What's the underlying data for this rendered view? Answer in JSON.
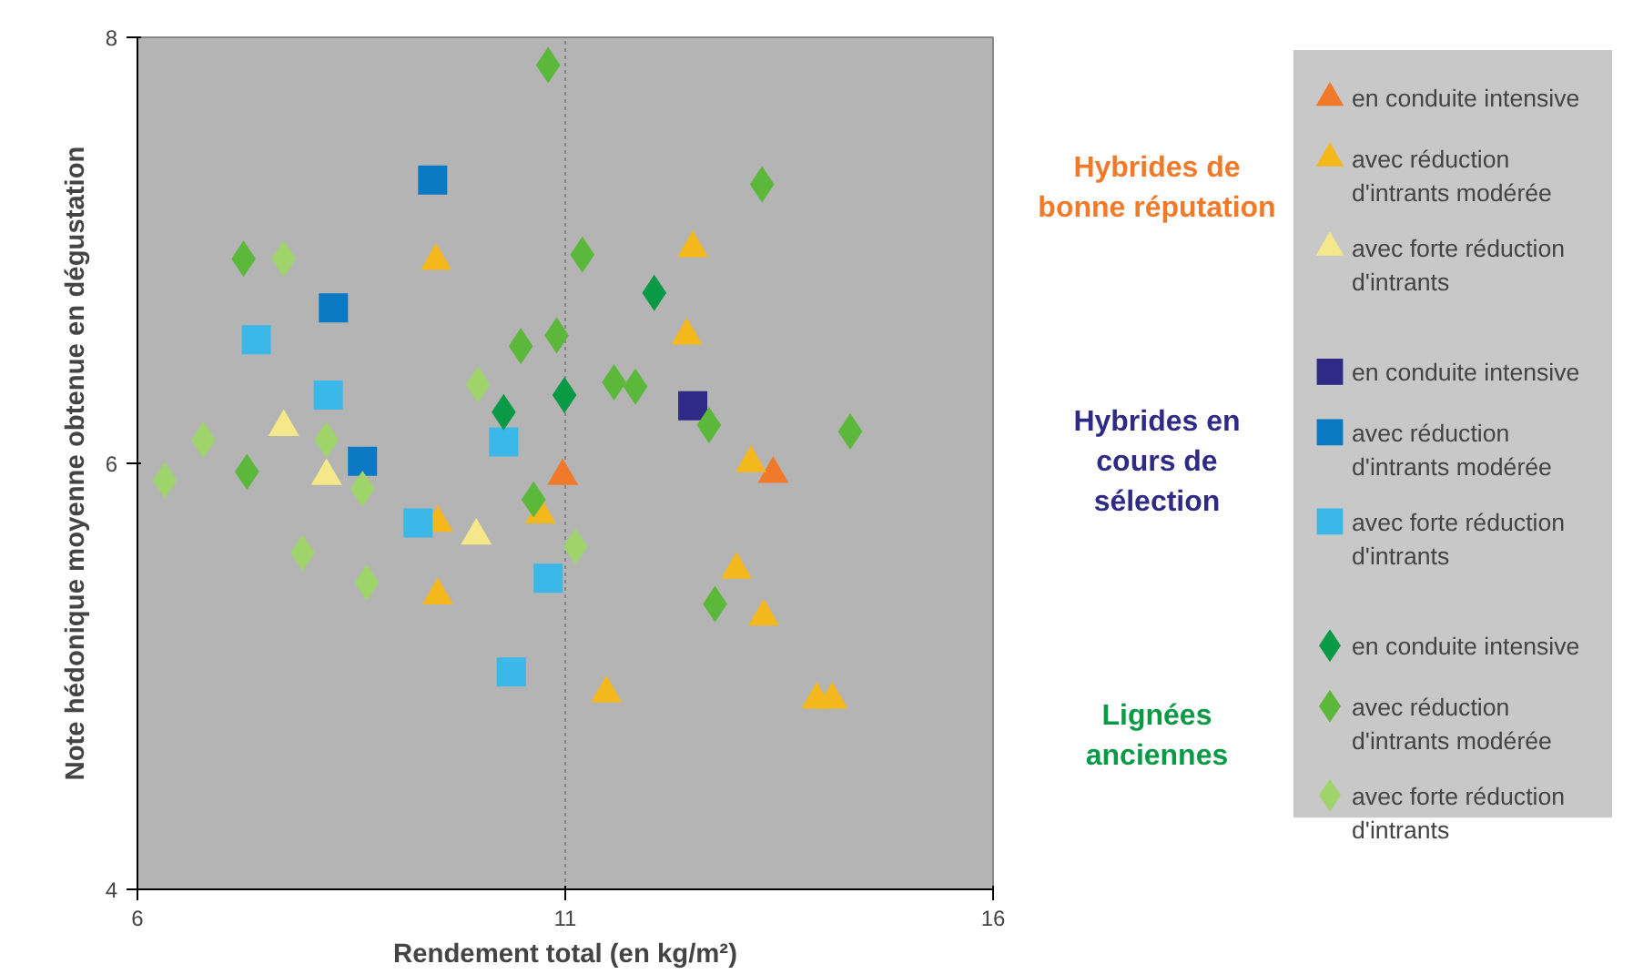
{
  "chart_data": {
    "type": "scatter",
    "xlabel": "Rendement total (en kg/m²)",
    "ylabel": "Note hédonique moyenne obtenue en dégustation",
    "xlim": [
      6,
      16
    ],
    "ylim": [
      4,
      8
    ],
    "xticks": [
      6,
      11,
      16
    ],
    "yticks": [
      4,
      6,
      8
    ],
    "grid": "x",
    "legend": "right",
    "annotations": [
      "Hybrides de bonne réputation",
      "Hybrides en cours de sélection",
      "Lignées anciennes"
    ],
    "series": [
      {
        "name": "en conduite intensive",
        "color": "#f07a2a",
        "marker": "triangle",
        "x": [
          10.97,
          13.43
        ],
        "values": [
          5.94,
          5.95
        ]
      },
      {
        "name": "avec réduction d'intrants modérée",
        "color": "#f5b81c",
        "marker": "triangle",
        "x": [
          9.49,
          12.49,
          12.42,
          13.17,
          10.71,
          9.51,
          9.51,
          13.0,
          13.32,
          11.48,
          13.94,
          14.12
        ],
        "values": [
          6.95,
          7.01,
          6.6,
          6.0,
          5.76,
          5.72,
          5.38,
          5.5,
          5.28,
          4.92,
          4.89,
          4.89
        ]
      },
      {
        "name": "avec forte réduction d'intrants",
        "color": "#f5e88a",
        "marker": "triangle",
        "x": [
          7.71,
          8.21,
          9.96
        ],
        "values": [
          6.17,
          5.94,
          5.66
        ]
      },
      {
        "name": "en conduite intensive",
        "color": "#2e2a86",
        "marker": "square",
        "x": [
          12.49
        ],
        "values": [
          6.27
        ]
      },
      {
        "name": "avec réduction d'intrants modérée",
        "color": "#0a78c2",
        "marker": "square",
        "x": [
          9.45,
          8.29,
          8.63
        ],
        "values": [
          7.33,
          6.73,
          6.01
        ]
      },
      {
        "name": "avec forte réduction d'intrants",
        "color": "#3bb8e8",
        "marker": "square",
        "x": [
          7.39,
          8.23,
          10.28,
          9.28,
          10.8,
          10.37
        ],
        "values": [
          6.58,
          6.32,
          6.1,
          5.72,
          5.46,
          5.02
        ]
      },
      {
        "name": "en conduite intensive",
        "color": "#0a9a46",
        "marker": "diamond",
        "x": [
          12.04,
          10.99,
          10.28
        ],
        "values": [
          6.8,
          6.32,
          6.24
        ]
      },
      {
        "name": "avec réduction d'intrants modérée",
        "color": "#5cb83a",
        "marker": "diamond",
        "x": [
          10.8,
          13.3,
          7.24,
          11.2,
          10.48,
          10.9,
          11.57,
          11.82,
          12.68,
          14.33,
          7.28,
          10.63,
          12.75
        ],
        "values": [
          7.87,
          7.31,
          6.96,
          6.98,
          6.55,
          6.6,
          6.38,
          6.36,
          6.18,
          6.15,
          5.96,
          5.83,
          5.34
        ]
      },
      {
        "name": "avec forte réduction d'intrants",
        "color": "#9fd46a",
        "marker": "diamond",
        "x": [
          7.71,
          9.98,
          6.77,
          6.32,
          8.21,
          8.63,
          7.93,
          8.68,
          11.12
        ],
        "values": [
          6.96,
          6.37,
          6.11,
          5.92,
          6.11,
          5.88,
          5.58,
          5.44,
          5.61
        ]
      }
    ]
  }
}
